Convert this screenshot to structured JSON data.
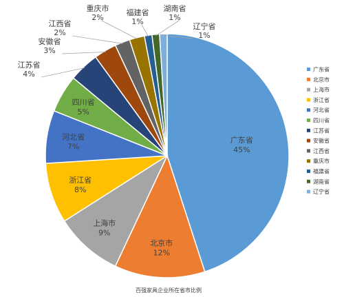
{
  "chart_data": {
    "type": "pie",
    "caption": "百强家具企业所在省市比例",
    "slices": [
      {
        "name": "广东省",
        "pct_label": "45%",
        "value": 45.0,
        "color": "#5b9bd5"
      },
      {
        "name": "北京市",
        "pct_label": "12%",
        "value": 12.0,
        "color": "#ed7d31"
      },
      {
        "name": "上海市",
        "pct_label": "9%",
        "value": 9.0,
        "color": "#a5a5a5"
      },
      {
        "name": "浙江省",
        "pct_label": "8%",
        "value": 8.0,
        "color": "#ffc000"
      },
      {
        "name": "河北省",
        "pct_label": "7%",
        "value": 7.0,
        "color": "#4472c4"
      },
      {
        "name": "四川省",
        "pct_label": "5%",
        "value": 5.0,
        "color": "#70ad47"
      },
      {
        "name": "江苏省",
        "pct_label": "4%",
        "value": 4.0,
        "color": "#264478"
      },
      {
        "name": "安徽省",
        "pct_label": "3%",
        "value": 3.0,
        "color": "#9e480e"
      },
      {
        "name": "江西省",
        "pct_label": "2%",
        "value": 2.0,
        "color": "#636363"
      },
      {
        "name": "重庆市",
        "pct_label": "2%",
        "value": 2.0,
        "color": "#997300"
      },
      {
        "name": "福建省",
        "pct_label": "1%",
        "value": 1.0,
        "color": "#255e91"
      },
      {
        "name": "湖南省",
        "pct_label": "1%",
        "value": 1.0,
        "color": "#43682b"
      },
      {
        "name": "辽宁省",
        "pct_label": "1%",
        "value": 1.0,
        "color": "#7cafdd"
      }
    ],
    "legend_position": "right"
  }
}
